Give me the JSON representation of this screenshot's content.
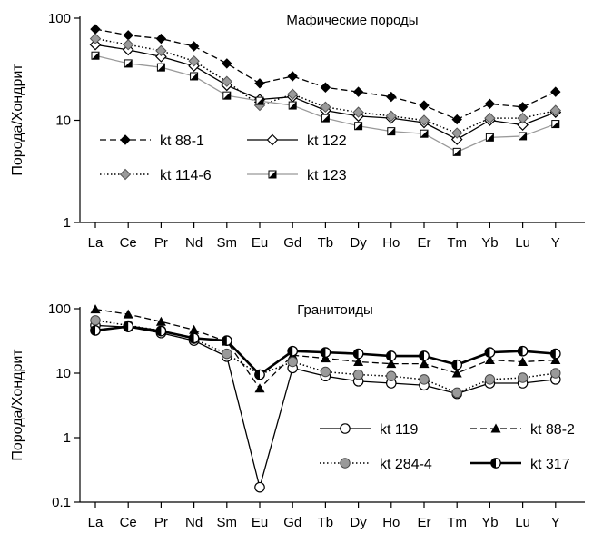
{
  "chart_data": [
    {
      "type": "line",
      "title": "Мафические породы",
      "xlabel": "",
      "ylabel": "Порода/Хондрит",
      "yscale": "log",
      "ylim": [
        1,
        100
      ],
      "yticks": [
        "1",
        "10",
        "100"
      ],
      "grid": false,
      "legend_position": "bottom-left, inside plot",
      "categories": [
        "La",
        "Ce",
        "Pr",
        "Nd",
        "Sm",
        "Eu",
        "Gd",
        "Tb",
        "Dy",
        "Ho",
        "Er",
        "Tm",
        "Yb",
        "Lu",
        "Y"
      ],
      "series": [
        {
          "name": "kt 88-1",
          "line": "dashed",
          "color": "#000000",
          "marker": "diamond-filled",
          "values": [
            78,
            68,
            63,
            53,
            36,
            23,
            27,
            21,
            19,
            17,
            14,
            10.2,
            14.5,
            13.5,
            19
          ]
        },
        {
          "name": "kt 122",
          "line": "solid",
          "color": "#000000",
          "marker": "diamond-open",
          "values": [
            55,
            49,
            42,
            34,
            22,
            16,
            17,
            12.5,
            11,
            10.5,
            9.5,
            6.5,
            10,
            9,
            12
          ]
        },
        {
          "name": "kt 114-6",
          "line": "dotted",
          "color": "#000000",
          "marker": "diamond-grey",
          "values": [
            63,
            55,
            48,
            38,
            24,
            14,
            18,
            13.5,
            12,
            11,
            10,
            7.5,
            10.5,
            10.5,
            12.5
          ]
        },
        {
          "name": "kt 123",
          "line": "solid",
          "color": "#999999",
          "marker": "square-half",
          "values": [
            43,
            36,
            33,
            27,
            17.5,
            15.5,
            14,
            10.5,
            8.8,
            7.8,
            7.4,
            4.9,
            6.8,
            7,
            9.2
          ]
        }
      ]
    },
    {
      "type": "line",
      "title": "Гранитоиды",
      "xlabel": "",
      "ylabel": "Порода/Хондрит",
      "yscale": "log",
      "ylim": [
        0.1,
        100
      ],
      "yticks": [
        "0.1",
        "1",
        "10",
        "100"
      ],
      "grid": false,
      "legend_position": "bottom-right, inside plot",
      "categories": [
        "La",
        "Ce",
        "Pr",
        "Nd",
        "Sm",
        "Eu",
        "Gd",
        "Tb",
        "Dy",
        "Ho",
        "Er",
        "Tm",
        "Yb",
        "Lu",
        "Y"
      ],
      "series": [
        {
          "name": "kt 119",
          "line": "solid",
          "color": "#000000",
          "marker": "circle-open",
          "values": [
            55,
            52,
            42,
            32,
            18,
            0.17,
            12,
            9,
            7.5,
            7,
            6.5,
            4.8,
            7,
            7,
            8
          ]
        },
        {
          "name": "kt 88-2",
          "line": "dashed",
          "color": "#000000",
          "marker": "triangle-filled",
          "values": [
            98,
            82,
            63,
            47,
            31,
            5.8,
            19,
            17,
            15,
            14,
            14,
            10,
            16,
            15,
            16
          ]
        },
        {
          "name": "kt 284-4",
          "line": "dotted",
          "color": "#000000",
          "marker": "circle-grey",
          "values": [
            66,
            55,
            46,
            34,
            20,
            9.5,
            15,
            10.5,
            9.5,
            9,
            8,
            5,
            8,
            8.5,
            10
          ]
        },
        {
          "name": "kt 317",
          "line": "solid-thick",
          "color": "#000000",
          "marker": "circle-half",
          "values": [
            46,
            53,
            45,
            35,
            32,
            9.5,
            22,
            21,
            20,
            18.5,
            18.5,
            13.5,
            21,
            22,
            20
          ]
        }
      ]
    }
  ]
}
